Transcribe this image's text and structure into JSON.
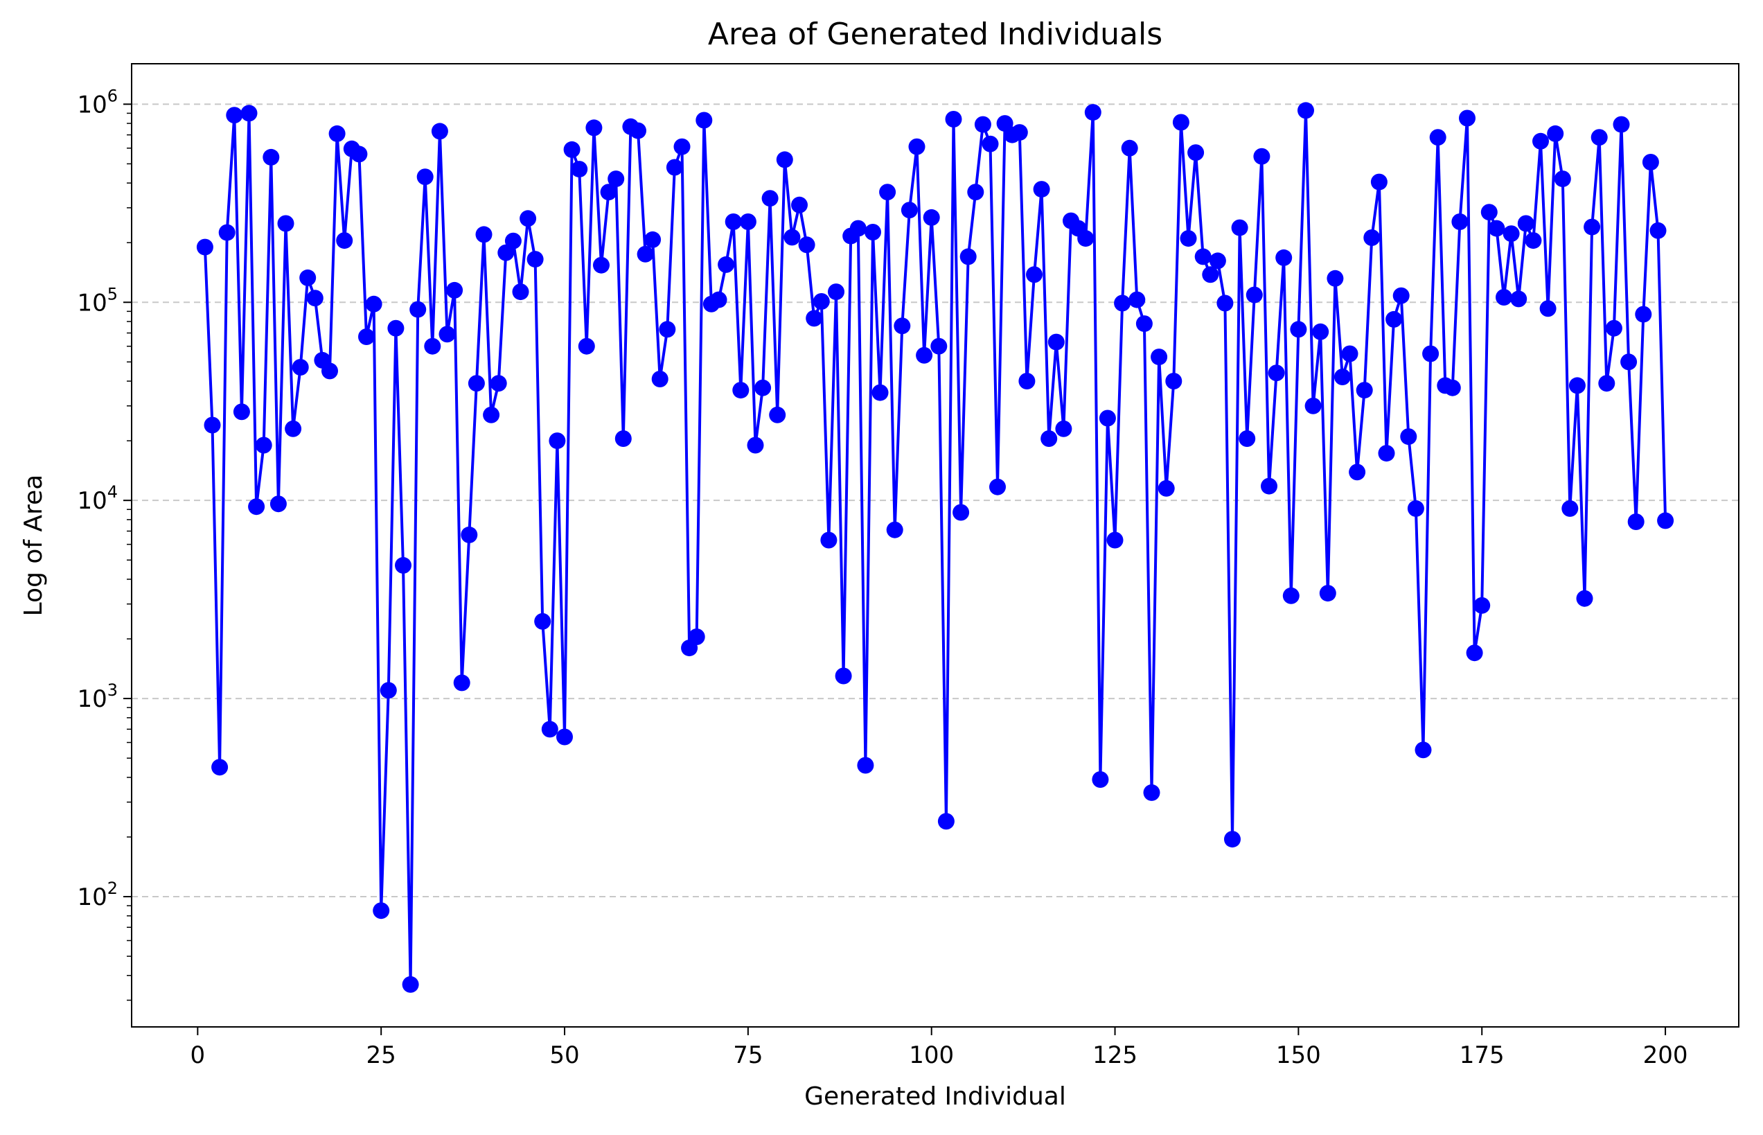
{
  "chart_data": {
    "type": "line",
    "title": "Area of Generated Individuals",
    "xlabel": "Generated Individual",
    "ylabel": "Log of Area",
    "yscale": "log",
    "xlim": [
      -9,
      210
    ],
    "ylim": [
      22,
      1600000
    ],
    "xticks": [
      0,
      25,
      50,
      75,
      100,
      125,
      150,
      175,
      200
    ],
    "yticks": [
      {
        "value": 100,
        "label": "10",
        "exp": "2"
      },
      {
        "value": 1000,
        "label": "10",
        "exp": "3"
      },
      {
        "value": 10000,
        "label": "10",
        "exp": "4"
      },
      {
        "value": 100000,
        "label": "10",
        "exp": "5"
      },
      {
        "value": 1000000,
        "label": "10",
        "exp": "6"
      }
    ],
    "grid": "horizontal dashed",
    "line_color": "#0000ff",
    "marker": "circle",
    "series": [
      {
        "x": [
          1,
          2,
          3,
          4,
          5,
          6,
          7,
          8,
          9,
          10,
          11,
          12,
          13,
          14,
          15,
          16,
          17,
          18,
          19,
          20,
          21,
          22,
          23,
          24,
          25,
          26,
          27,
          28,
          29,
          30,
          31,
          32,
          33,
          34,
          35,
          36,
          37,
          38,
          39,
          40,
          41,
          42,
          43,
          44,
          45,
          46,
          47,
          48,
          49,
          50,
          51,
          52,
          53,
          54,
          55,
          56,
          57,
          58,
          59,
          60,
          61,
          62,
          63,
          64,
          65,
          66,
          67,
          68,
          69,
          70,
          71,
          72,
          73,
          74,
          75,
          76,
          77,
          78,
          79,
          80,
          81,
          82,
          83,
          84,
          85,
          86,
          87,
          88,
          89,
          90,
          91,
          92,
          93,
          94,
          95,
          96,
          97,
          98,
          99,
          100,
          101,
          102,
          103,
          104,
          105,
          106,
          107,
          108,
          109,
          110,
          111,
          112,
          113,
          114,
          115,
          116,
          117,
          118,
          119,
          120,
          121,
          122,
          123,
          124,
          125,
          126,
          127,
          128,
          129,
          130,
          131,
          132,
          133,
          134,
          135,
          136,
          137,
          138,
          139,
          140,
          141,
          142,
          143,
          144,
          145,
          146,
          147,
          148,
          149,
          150,
          151,
          152,
          153,
          154,
          155,
          156,
          157,
          158,
          159,
          160,
          161,
          162,
          163,
          164,
          165,
          166,
          167,
          168,
          169,
          170,
          171,
          172,
          173,
          174,
          175,
          176,
          177,
          178,
          179,
          180,
          181,
          182,
          183,
          184,
          185,
          186,
          187,
          188,
          189,
          190,
          191,
          192,
          193,
          194,
          195,
          196,
          197,
          198,
          199,
          200
        ],
        "y": [
          190000,
          24000,
          450,
          225000,
          880000,
          28000,
          900000,
          9300,
          19000,
          540000,
          9600,
          250000,
          23000,
          47000,
          133000,
          105000,
          51000,
          45000,
          710000,
          205000,
          595000,
          560000,
          67000,
          98000,
          85,
          1100,
          74000,
          4700,
          36,
          92000,
          430000,
          60000,
          730000,
          69000,
          115000,
          1200,
          6700,
          39000,
          220000,
          27000,
          39000,
          178000,
          204000,
          113000,
          265000,
          165000,
          2450,
          700,
          20000,
          640,
          590000,
          470000,
          60000,
          760000,
          154000,
          360000,
          420000,
          20500,
          770000,
          735000,
          175000,
          207000,
          41000,
          73000,
          480000,
          610000,
          1800,
          2050,
          830000,
          98000,
          103000,
          155000,
          255000,
          36000,
          255000,
          19000,
          37000,
          335000,
          27000,
          525000,
          213000,
          310000,
          195000,
          83000,
          101000,
          6300,
          113000,
          1300,
          216000,
          236000,
          460,
          226000,
          35000,
          360000,
          7100,
          76000,
          292000,
          610000,
          54000,
          268000,
          60000,
          240,
          840000,
          8700,
          170000,
          360000,
          790000,
          630000,
          11700,
          800000,
          700000,
          720000,
          40000,
          138000,
          372000,
          20500,
          63000,
          23000,
          258000,
          236000,
          210000,
          910000,
          390,
          26000,
          6300,
          99000,
          600000,
          103000,
          78000,
          335,
          53000,
          11500,
          40000,
          810000,
          210000,
          570000,
          170000,
          138000,
          162000,
          99000,
          195,
          238000,
          20500,
          109000,
          545000,
          11800,
          44000,
          168000,
          3300,
          73000,
          930000,
          30000,
          71000,
          3400,
          132000,
          42000,
          55000,
          13900,
          36000,
          212000,
          405000,
          17300,
          82000,
          108000,
          21000,
          9100,
          550,
          55000,
          680000,
          38000,
          37000,
          255000,
          850000,
          1700,
          2950,
          285000,
          236000,
          106000,
          222000,
          104000,
          250000,
          205000,
          650000,
          93000,
          710000,
          420000,
          9100,
          38000,
          3200,
          240000,
          680000,
          39000,
          74000,
          790000,
          50000,
          7800,
          87000,
          510000,
          230000,
          7900
        ]
      }
    ]
  }
}
